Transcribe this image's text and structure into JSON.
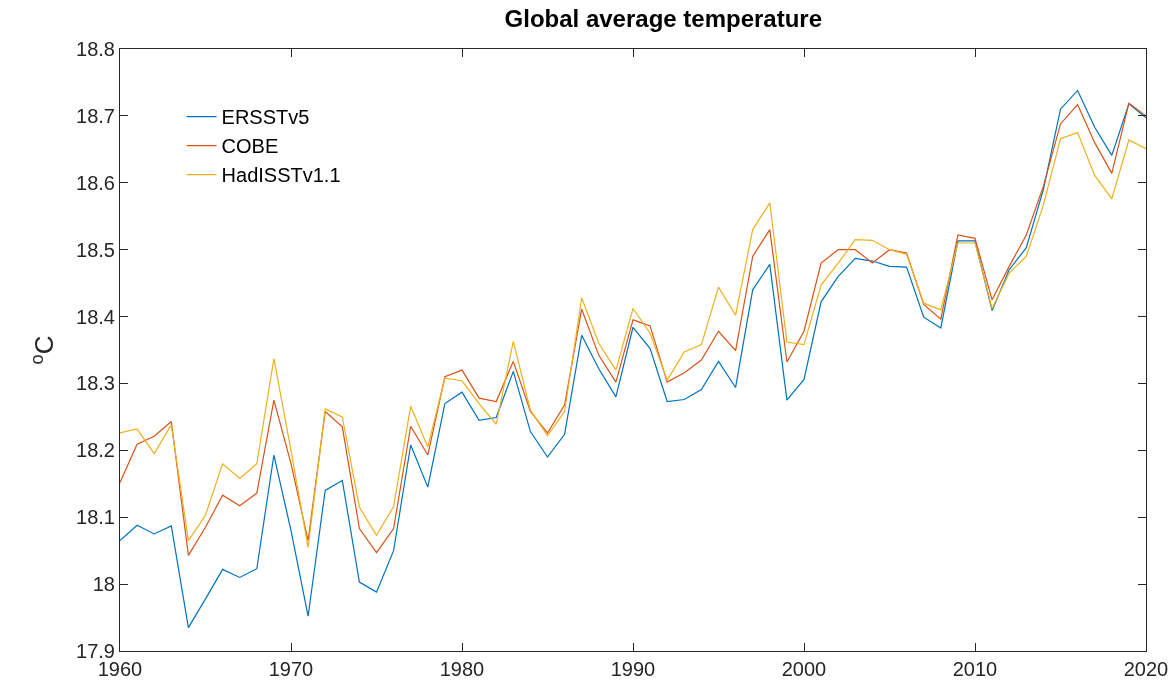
{
  "chart_data": {
    "type": "line",
    "title": "Global average temperature",
    "ylabel": "$^{o}$C",
    "x": [
      1960,
      1961,
      1962,
      1963,
      1964,
      1965,
      1966,
      1967,
      1968,
      1969,
      1970,
      1971,
      1972,
      1973,
      1974,
      1975,
      1976,
      1977,
      1978,
      1979,
      1980,
      1981,
      1982,
      1983,
      1984,
      1985,
      1986,
      1987,
      1988,
      1989,
      1990,
      1991,
      1992,
      1993,
      1994,
      1995,
      1996,
      1997,
      1998,
      1999,
      2000,
      2001,
      2002,
      2003,
      2004,
      2005,
      2006,
      2007,
      2008,
      2009,
      2010,
      2011,
      2012,
      2013,
      2014,
      2015,
      2016,
      2017,
      2018,
      2019,
      2020
    ],
    "series": [
      {
        "name": "ERSSTv5",
        "color": "#0072bd",
        "values": [
          18.065,
          18.088,
          18.075,
          18.087,
          17.935,
          17.978,
          18.022,
          18.01,
          18.023,
          18.193,
          18.08,
          17.952,
          18.14,
          18.155,
          18.003,
          17.988,
          18.05,
          18.208,
          18.145,
          18.27,
          18.287,
          18.245,
          18.249,
          18.318,
          18.228,
          18.19,
          18.224,
          18.372,
          18.322,
          18.28,
          18.384,
          18.352,
          18.273,
          18.276,
          18.291,
          18.333,
          18.294,
          18.44,
          18.478,
          18.275,
          18.306,
          18.422,
          18.46,
          18.487,
          18.483,
          18.475,
          18.474,
          18.399,
          18.383,
          18.513,
          18.513,
          18.409,
          18.47,
          18.503,
          18.59,
          18.71,
          18.738,
          18.683,
          18.641,
          18.718,
          18.697
        ]
      },
      {
        "name": "COBE",
        "color": "#d95319",
        "values": [
          18.152,
          18.209,
          18.221,
          18.243,
          18.043,
          18.085,
          18.133,
          18.117,
          18.136,
          18.275,
          18.18,
          18.065,
          18.258,
          18.235,
          18.083,
          18.047,
          18.083,
          18.236,
          18.193,
          18.31,
          18.32,
          18.278,
          18.273,
          18.333,
          18.258,
          18.226,
          18.268,
          18.411,
          18.342,
          18.302,
          18.395,
          18.386,
          18.302,
          18.316,
          18.335,
          18.378,
          18.349,
          18.49,
          18.53,
          18.332,
          18.378,
          18.48,
          18.5,
          18.5,
          18.48,
          18.5,
          18.495,
          18.418,
          18.396,
          18.522,
          18.517,
          18.425,
          18.475,
          18.522,
          18.595,
          18.688,
          18.717,
          18.66,
          18.614,
          18.719,
          18.7
        ]
      },
      {
        "name": "HadISSTv1.1",
        "color": "#edb120",
        "values": [
          18.226,
          18.232,
          18.195,
          18.238,
          18.065,
          18.103,
          18.18,
          18.158,
          18.18,
          18.337,
          18.2,
          18.055,
          18.262,
          18.25,
          18.115,
          18.073,
          18.116,
          18.266,
          18.205,
          18.308,
          18.304,
          18.27,
          18.239,
          18.363,
          18.26,
          18.222,
          18.258,
          18.428,
          18.36,
          18.32,
          18.412,
          18.375,
          18.305,
          18.347,
          18.358,
          18.444,
          18.402,
          18.53,
          18.57,
          18.362,
          18.358,
          18.447,
          18.48,
          18.515,
          18.514,
          18.5,
          18.493,
          18.42,
          18.41,
          18.51,
          18.51,
          18.412,
          18.465,
          18.49,
          18.567,
          18.666,
          18.675,
          18.611,
          18.576,
          18.664,
          18.651
        ]
      }
    ],
    "xlim": [
      1960,
      2020
    ],
    "xticks": [
      1960,
      1970,
      1980,
      1990,
      2000,
      2010,
      2020
    ],
    "ylim": [
      17.9,
      18.8
    ],
    "yticks": [
      17.9,
      18,
      18.1,
      18.2,
      18.3,
      18.4,
      18.5,
      18.6,
      18.7,
      18.8
    ],
    "grid": false,
    "legend": "top left",
    "marker": "none",
    "line_style": "solid"
  }
}
